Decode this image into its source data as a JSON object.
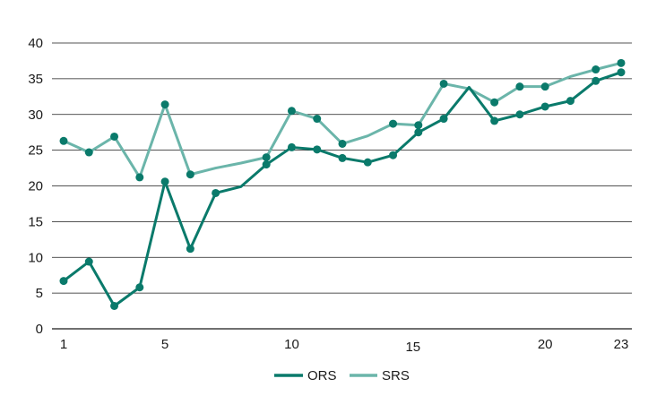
{
  "chart_data": {
    "type": "line",
    "x": [
      1,
      2,
      3,
      4,
      5,
      6,
      7,
      8,
      9,
      10,
      11,
      12,
      13,
      14,
      15,
      16,
      17,
      18,
      19,
      20,
      21,
      22,
      23
    ],
    "x_tick_labels": [
      "1",
      "5",
      "10",
      "15",
      "20",
      "23"
    ],
    "x_ticks": [
      1,
      5,
      10,
      15,
      20,
      23
    ],
    "ylim": [
      0,
      40
    ],
    "y_ticks": [
      0,
      5,
      10,
      15,
      20,
      25,
      30,
      35,
      40
    ],
    "grid": true,
    "legend_position": "bottom",
    "series": [
      {
        "name": "ORS",
        "color": "#0a7a6b",
        "values": [
          6.7,
          9.4,
          3.2,
          5.8,
          20.6,
          11.2,
          19.0,
          19.9,
          23.0,
          25.4,
          25.1,
          23.9,
          23.3,
          24.3,
          27.5,
          29.4,
          33.8,
          29.1,
          30.0,
          31.1,
          31.9,
          34.7,
          35.9
        ],
        "markers": [
          true,
          true,
          true,
          true,
          true,
          true,
          true,
          false,
          true,
          true,
          true,
          true,
          true,
          true,
          true,
          true,
          false,
          true,
          true,
          true,
          true,
          true,
          true
        ]
      },
      {
        "name": "SRS",
        "color": "#6bb5aa",
        "values": [
          26.3,
          24.7,
          26.9,
          21.2,
          31.4,
          21.6,
          22.5,
          23.2,
          24.0,
          30.5,
          29.4,
          25.9,
          27.0,
          28.7,
          28.5,
          34.3,
          33.6,
          31.7,
          33.9,
          33.9,
          35.3,
          36.3,
          37.2
        ],
        "markers": [
          true,
          true,
          true,
          true,
          true,
          true,
          false,
          false,
          true,
          true,
          true,
          true,
          false,
          true,
          true,
          true,
          false,
          true,
          true,
          true,
          false,
          true,
          true
        ]
      }
    ]
  }
}
